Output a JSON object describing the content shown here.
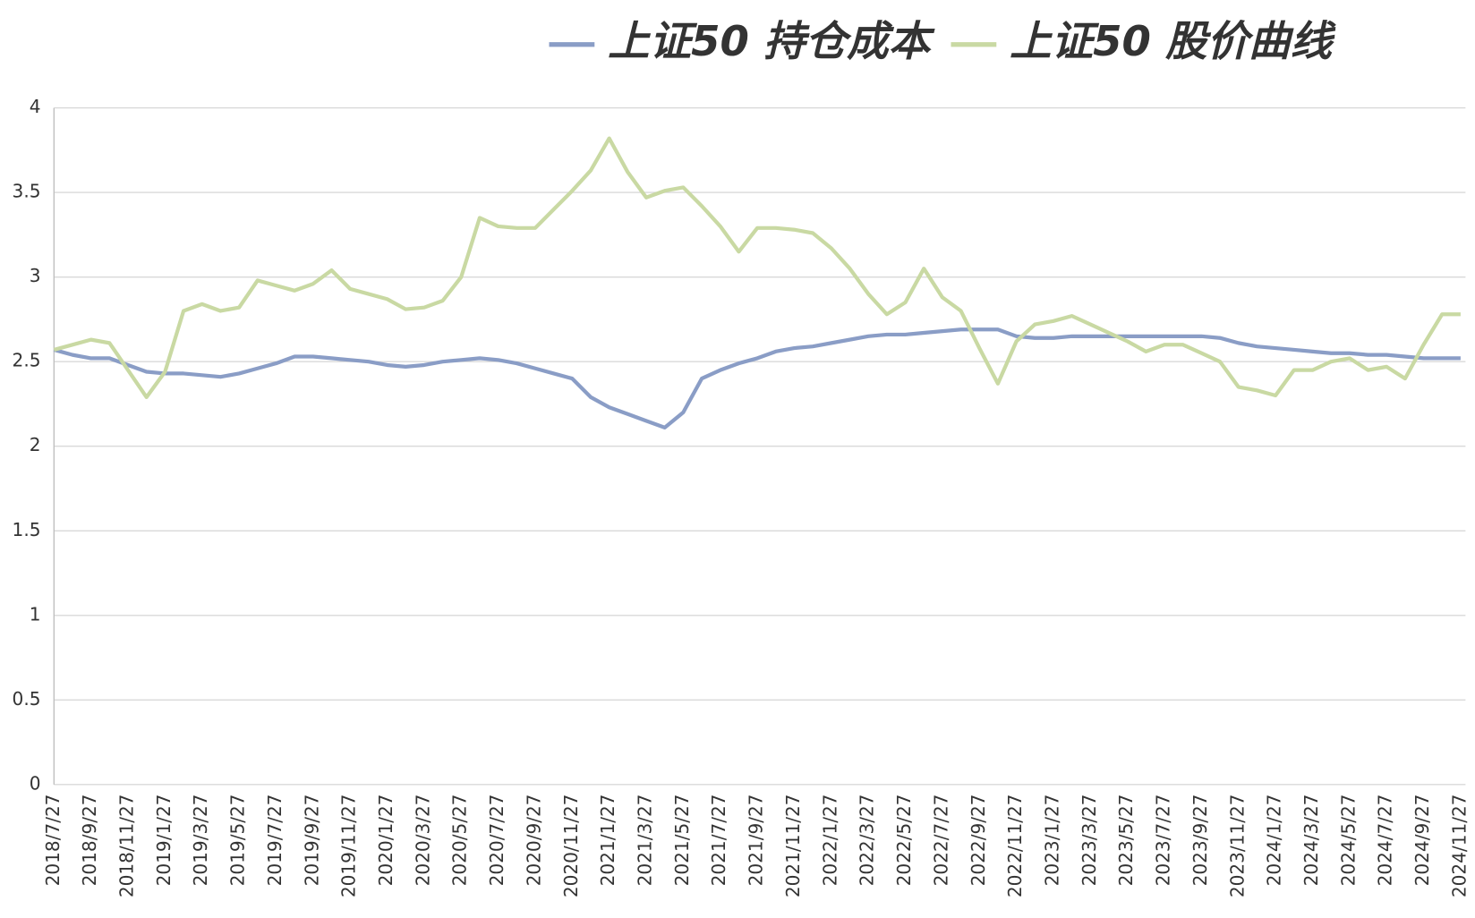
{
  "chart_data": {
    "type": "line",
    "categories": [
      "2018/7/27",
      null,
      "2018/9/27",
      null,
      "2018/11/27",
      null,
      "2019/1/27",
      null,
      "2019/3/27",
      null,
      "2019/5/27",
      null,
      "2019/7/27",
      null,
      "2019/9/27",
      null,
      "2019/11/27",
      null,
      "2020/1/27",
      null,
      "2020/3/27",
      null,
      "2020/5/27",
      null,
      "2020/7/27",
      null,
      "2020/9/27",
      null,
      "2020/11/27",
      null,
      "2021/1/27",
      null,
      "2021/3/27",
      null,
      "2021/5/27",
      null,
      "2021/7/27",
      null,
      "2021/9/27",
      null,
      "2021/11/27",
      null,
      "2022/1/27",
      null,
      "2022/3/27",
      null,
      "2022/5/27",
      null,
      "2022/7/27",
      null,
      "2022/9/27",
      null,
      "2022/11/27",
      null,
      "2023/1/27",
      null,
      "2023/3/27",
      null,
      "2023/5/27",
      null,
      "2023/7/27",
      null,
      "2023/9/27",
      null,
      "2023/11/27",
      null,
      "2024/1/27",
      null,
      "2024/3/27",
      null,
      "2024/5/27",
      null,
      "2024/7/27",
      null,
      "2024/9/27",
      null,
      "2024/11/27"
    ],
    "series": [
      {
        "name": "上证50 持仓成本",
        "color": "#8a9dc6",
        "values": [
          2.57,
          2.54,
          2.52,
          2.52,
          2.48,
          2.44,
          2.43,
          2.43,
          2.42,
          2.41,
          2.43,
          2.46,
          2.49,
          2.53,
          2.53,
          2.52,
          2.51,
          2.5,
          2.48,
          2.47,
          2.48,
          2.5,
          2.51,
          2.52,
          2.51,
          2.49,
          2.46,
          2.43,
          2.4,
          2.29,
          2.23,
          2.19,
          2.15,
          2.11,
          2.2,
          2.4,
          2.45,
          2.49,
          2.52,
          2.56,
          2.58,
          2.59,
          2.61,
          2.63,
          2.65,
          2.66,
          2.66,
          2.67,
          2.68,
          2.69,
          2.69,
          2.69,
          2.65,
          2.64,
          2.64,
          2.65,
          2.65,
          2.65,
          2.65,
          2.65,
          2.65,
          2.65,
          2.65,
          2.64,
          2.61,
          2.59,
          2.58,
          2.57,
          2.56,
          2.55,
          2.55,
          2.54,
          2.54,
          2.53,
          2.52,
          2.52,
          2.52
        ]
      },
      {
        "name": "上证50 股价曲线",
        "color": "#c9d9a3",
        "values": [
          2.57,
          2.6,
          2.63,
          2.61,
          2.45,
          2.29,
          2.44,
          2.8,
          2.84,
          2.8,
          2.82,
          2.98,
          2.95,
          2.92,
          2.96,
          3.04,
          2.93,
          2.9,
          2.87,
          2.81,
          2.82,
          2.86,
          3.0,
          3.35,
          3.3,
          3.29,
          3.29,
          3.4,
          3.51,
          3.63,
          3.82,
          3.62,
          3.47,
          3.51,
          3.53,
          3.42,
          3.3,
          3.15,
          3.29,
          3.29,
          3.28,
          3.26,
          3.17,
          3.05,
          2.9,
          2.78,
          2.85,
          3.05,
          2.88,
          2.8,
          2.58,
          2.37,
          2.62,
          2.72,
          2.74,
          2.77,
          2.72,
          2.67,
          2.62,
          2.56,
          2.6,
          2.6,
          2.55,
          2.5,
          2.35,
          2.33,
          2.3,
          2.45,
          2.45,
          2.5,
          2.52,
          2.45,
          2.47,
          2.4,
          2.6,
          2.78,
          2.78
        ]
      }
    ],
    "ylim": [
      0,
      4
    ],
    "yticks": [
      0,
      0.5,
      1,
      1.5,
      2,
      2.5,
      3,
      3.5,
      4
    ],
    "grid": true
  }
}
